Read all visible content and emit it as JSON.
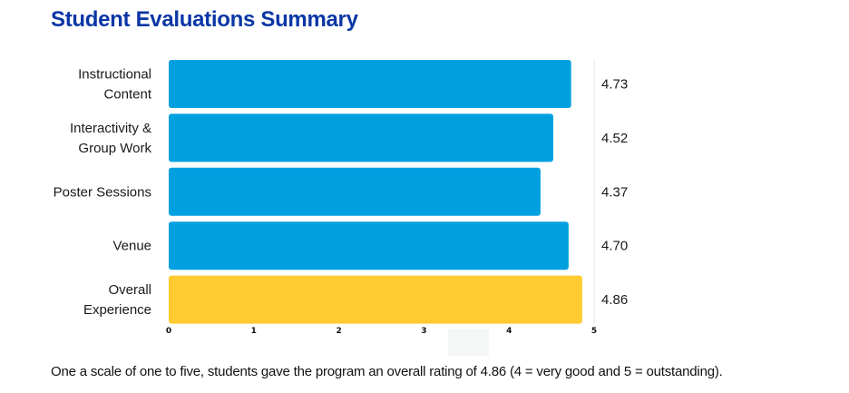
{
  "chart_data": {
    "type": "bar",
    "orientation": "horizontal",
    "title": "Student Evaluations Summary",
    "categories": [
      [
        "Instructional",
        "Content"
      ],
      [
        "Interactivity &",
        "Group Work"
      ],
      [
        "Poster Sessions"
      ],
      [
        "Venue"
      ],
      [
        "Overall",
        "Experience"
      ]
    ],
    "values": [
      4.73,
      4.52,
      4.37,
      4.7,
      4.86
    ],
    "value_labels": [
      "4.73",
      "4.52",
      "4.37",
      "4.70",
      "4.86"
    ],
    "bar_colors": [
      "#00a0e0",
      "#00a0e0",
      "#00a0e0",
      "#00a0e0",
      "#ffcb31"
    ],
    "xlim": [
      0,
      5
    ],
    "xticks": [
      0,
      1,
      2,
      3,
      4,
      5
    ],
    "xtick_labels": [
      "0",
      "1",
      "2",
      "3",
      "4",
      "5"
    ],
    "xlabel": "",
    "ylabel": "",
    "grid": false,
    "legend": "none"
  },
  "caption": "One a scale of one to five, students gave the program an overall rating of 4.86 (4 = very good and 5 = outstanding).",
  "colors": {
    "title": "#0a36a6",
    "primary_bar": "#00a0e0",
    "highlight_bar": "#ffcb31"
  }
}
